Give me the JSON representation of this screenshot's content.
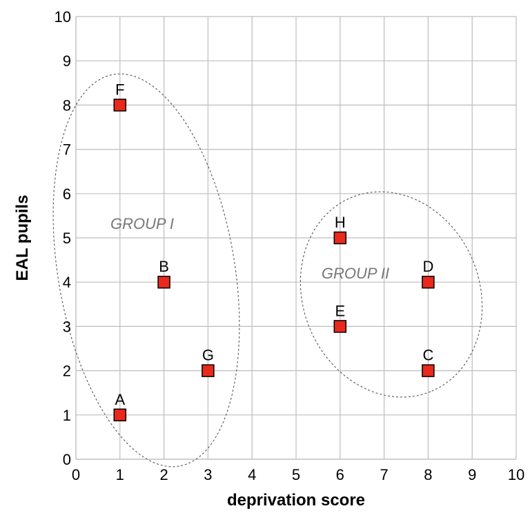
{
  "chart_data": {
    "type": "scatter",
    "xlabel": "deprivation score",
    "ylabel": "EAL pupils",
    "xlim": [
      0,
      10
    ],
    "ylim": [
      0,
      10
    ],
    "xticks": [
      "0",
      "1",
      "2",
      "3",
      "4",
      "5",
      "6",
      "7",
      "8",
      "9",
      "10"
    ],
    "yticks": [
      "0",
      "1",
      "2",
      "3",
      "4",
      "5",
      "6",
      "7",
      "8",
      "9",
      "10"
    ],
    "grid": true,
    "marker_color": "#e8291c",
    "points": [
      {
        "label": "A",
        "x": 1,
        "y": 1
      },
      {
        "label": "B",
        "x": 2,
        "y": 4
      },
      {
        "label": "C",
        "x": 8,
        "y": 2
      },
      {
        "label": "D",
        "x": 8,
        "y": 4
      },
      {
        "label": "E",
        "x": 6,
        "y": 3
      },
      {
        "label": "F",
        "x": 1,
        "y": 8
      },
      {
        "label": "G",
        "x": 3,
        "y": 2
      },
      {
        "label": "H",
        "x": 6,
        "y": 5
      }
    ],
    "groups": [
      {
        "label": "GROUP I",
        "members": [
          "A",
          "B",
          "F",
          "G"
        ]
      },
      {
        "label": "GROUP II",
        "members": [
          "C",
          "D",
          "E",
          "H"
        ]
      }
    ]
  }
}
